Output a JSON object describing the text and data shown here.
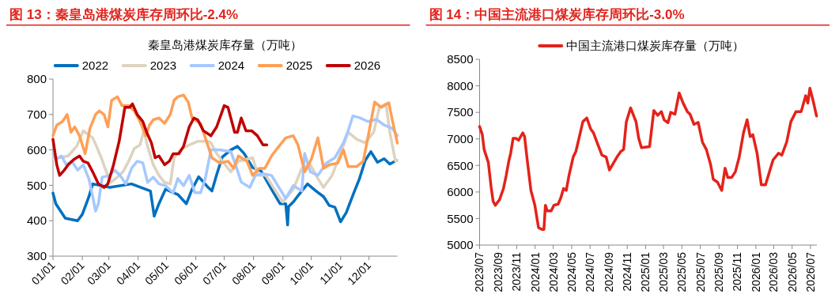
{
  "chart_data": [
    {
      "type": "line",
      "title": "图 13：秦皇岛港煤炭库存周环比-2.4%",
      "subtitle": "秦皇岛港煤炭库存量（万吨）",
      "legend": "top",
      "xlim": [
        "--01-01",
        "--12-31"
      ],
      "ylim": [
        300,
        800
      ],
      "yticks": [
        300,
        400,
        500,
        600,
        700,
        800
      ],
      "xticks": [
        {
          "value": "--01-01",
          "label": "01/01"
        },
        {
          "value": "--02-01",
          "label": "02/01"
        },
        {
          "value": "--03-01",
          "label": "03/01"
        },
        {
          "value": "--04-01",
          "label": "04/01"
        },
        {
          "value": "--05-01",
          "label": "05/01"
        },
        {
          "value": "--06-01",
          "label": "06/01"
        },
        {
          "value": "--07-01",
          "label": "07/01"
        },
        {
          "value": "--08-01",
          "label": "08/01"
        },
        {
          "value": "--09-01",
          "label": "09/01"
        },
        {
          "value": "--10-01",
          "label": "10/01"
        },
        {
          "value": "--11-01",
          "label": "11/01"
        },
        {
          "value": "--12-01",
          "label": "12/01"
        }
      ],
      "series": [
        {
          "name": "2022",
          "color": "#0070c0",
          "x": [
            "--01-01",
            "--01-04",
            "--01-14",
            "--01-27",
            "--02-01",
            "--02-08",
            "--02-12",
            "--03-02",
            "--03-25",
            "--04-14",
            "--04-18",
            "--04-23",
            "--04-30",
            "--05-13",
            "--05-22",
            "--05-28",
            "--06-04",
            "--06-14",
            "--06-18",
            "--06-23",
            "--06-29",
            "--07-08",
            "--07-15",
            "--07-22",
            "--07-31",
            "--08-09",
            "--08-20",
            "--08-29",
            "--09-04",
            "--09-06",
            "--09-07",
            "--09-12",
            "--09-18",
            "--09-27",
            "--10-06",
            "--10-14",
            "--10-20",
            "--10-26",
            "--11-01",
            "--11-07",
            "--11-15",
            "--11-21",
            "--11-27",
            "--12-03",
            "--12-10",
            "--12-17",
            "--12-23",
            "--12-30"
          ],
          "values": [
            478,
            448,
            407,
            400,
            418,
            468,
            504,
            494,
            504,
            484,
            413,
            448,
            489,
            474,
            448,
            489,
            524,
            494,
            484,
            530,
            580,
            600,
            610,
            590,
            550,
            540,
            489,
            448,
            448,
            388,
            440,
            453,
            474,
            504,
            484,
            468,
            443,
            438,
            397,
            423,
            479,
            519,
            570,
            595,
            565,
            575,
            560,
            570
          ]
        },
        {
          "name": "2023",
          "color": "#ddd3bf",
          "x": [
            "--01-01",
            "--01-08",
            "--01-17",
            "--01-26",
            "--02-02",
            "--02-12",
            "--02-16",
            "--02-21",
            "--02-25",
            "--03-03",
            "--03-10",
            "--03-16",
            "--03-22",
            "--03-28",
            "--04-03",
            "--04-07",
            "--04-11",
            "--04-17",
            "--04-23",
            "--04-29",
            "--05-05",
            "--05-09",
            "--05-16",
            "--05-25",
            "--06-03",
            "--06-14",
            "--06-17",
            "--06-23",
            "--06-29",
            "--07-08",
            "--07-16",
            "--07-31",
            "--08-06",
            "--08-14",
            "--08-23",
            "--09-01",
            "--09-12",
            "--09-21",
            "--09-30",
            "--10-08",
            "--10-14",
            "--10-23",
            "--11-01",
            "--11-09",
            "--11-18",
            "--11-27",
            "--12-06",
            "--12-12",
            "--12-19",
            "--12-23",
            "--12-29",
            "--12-31"
          ],
          "values": [
            575,
            578,
            583,
            610,
            654,
            634,
            610,
            578,
            548,
            508,
            523,
            538,
            568,
            604,
            614,
            654,
            610,
            558,
            528,
            508,
            504,
            578,
            600,
            614,
            624,
            624,
            620,
            590,
            568,
            538,
            568,
            578,
            528,
            528,
            489,
            453,
            489,
            548,
            558,
            519,
            494,
            528,
            590,
            650,
            630,
            620,
            650,
            720,
            730,
            650,
            568,
            570
          ]
        },
        {
          "name": "2024",
          "color": "#a6c8ff",
          "x": [
            "--01-01",
            "--01-05",
            "--01-10",
            "--01-15",
            "--01-21",
            "--01-27",
            "--02-02",
            "--02-08",
            "--02-12",
            "--02-15",
            "--02-18",
            "--02-22",
            "--03-02",
            "--03-07",
            "--03-13",
            "--03-19",
            "--03-25",
            "--03-31",
            "--04-06",
            "--04-11",
            "--04-17",
            "--04-23",
            "--04-30",
            "--05-08",
            "--05-13",
            "--05-19",
            "--05-25",
            "--05-31",
            "--06-06",
            "--06-11",
            "--06-17",
            "--06-26",
            "--07-08",
            "--07-13",
            "--07-19",
            "--07-28",
            "--08-03",
            "--08-11",
            "--08-20",
            "--08-29",
            "--09-04",
            "--09-12",
            "--09-21",
            "--09-24",
            "--09-30",
            "--10-08",
            "--10-17",
            "--10-26",
            "--11-04",
            "--11-09",
            "--11-14",
            "--11-21",
            "--11-30",
            "--12-09",
            "--12-17",
            "--12-26",
            "--12-31"
          ],
          "values": [
            589,
            575,
            583,
            558,
            568,
            543,
            558,
            518,
            468,
            427,
            448,
            523,
            528,
            543,
            528,
            504,
            548,
            568,
            563,
            508,
            523,
            504,
            499,
            479,
            519,
            499,
            528,
            479,
            479,
            519,
            600,
            600,
            595,
            558,
            509,
            494,
            528,
            533,
            528,
            489,
            463,
            499,
            484,
            590,
            538,
            528,
            563,
            578,
            620,
            654,
            696,
            691,
            680,
            686,
            670,
            660,
            640
          ]
        },
        {
          "name": "2025",
          "color": "#ff9f56",
          "x": [
            "--01-01",
            "--01-05",
            "--01-11",
            "--01-16",
            "--01-20",
            "--01-24",
            "--01-29",
            "--02-04",
            "--02-09",
            "--02-15",
            "--02-19",
            "--02-24",
            "--02-28",
            "--03-04",
            "--03-10",
            "--03-15",
            "--03-22",
            "--03-28",
            "--04-03",
            "--04-09",
            "--04-13",
            "--04-17",
            "--04-23",
            "--04-29",
            "--05-05",
            "--05-09",
            "--05-13",
            "--05-19",
            "--05-24",
            "--05-28",
            "--06-06",
            "--06-11",
            "--06-18",
            "--06-26",
            "--07-05",
            "--07-11",
            "--07-16",
            "--07-25",
            "--07-31",
            "--08-07",
            "--08-13",
            "--08-20",
            "--08-26",
            "--09-04",
            "--09-12",
            "--09-17",
            "--09-24",
            "--10-01",
            "--10-08",
            "--10-14",
            "--10-20",
            "--10-29",
            "--11-04",
            "--11-09",
            "--11-18",
            "--11-25",
            "--12-01",
            "--12-07",
            "--12-14",
            "--12-22",
            "--12-26",
            "--12-31"
          ],
          "values": [
            640,
            670,
            680,
            700,
            650,
            665,
            640,
            589,
            660,
            700,
            710,
            700,
            665,
            740,
            750,
            725,
            725,
            710,
            680,
            640,
            670,
            685,
            690,
            675,
            700,
            740,
            750,
            755,
            735,
            690,
            675,
            634,
            578,
            563,
            568,
            548,
            583,
            568,
            528,
            548,
            548,
            583,
            604,
            634,
            640,
            614,
            538,
            573,
            634,
            548,
            558,
            563,
            600,
            553,
            553,
            568,
            650,
            735,
            720,
            733,
            680,
            619
          ]
        },
        {
          "name": "2026",
          "color": "#c00000",
          "x": [
            "--01-01",
            "--01-05",
            "--01-08",
            "--01-13",
            "--01-17",
            "--01-23",
            "--01-29",
            "--02-02",
            "--02-07",
            "--02-12",
            "--02-18",
            "--02-24",
            "--02-28",
            "--03-06",
            "--03-12",
            "--03-18",
            "--03-23",
            "--03-26",
            "--03-31",
            "--04-06",
            "--04-10",
            "--04-15",
            "--04-19",
            "--04-23",
            "--04-29",
            "--05-04",
            "--05-08",
            "--05-14",
            "--05-19",
            "--05-25",
            "--05-30",
            "--06-03",
            "--06-09",
            "--06-17",
            "--06-23",
            "--07-01",
            "--07-05",
            "--07-12",
            "--07-15",
            "--07-19",
            "--07-24",
            "--07-30",
            "--08-05",
            "--08-11",
            "--08-15"
          ],
          "values": [
            630,
            558,
            528,
            543,
            558,
            573,
            583,
            568,
            563,
            538,
            504,
            494,
            504,
            558,
            625,
            720,
            720,
            730,
            700,
            680,
            650,
            620,
            578,
            583,
            558,
            568,
            589,
            589,
            610,
            665,
            690,
            685,
            654,
            640,
            665,
            725,
            720,
            650,
            650,
            690,
            654,
            654,
            640,
            614,
            614
          ]
        }
      ]
    },
    {
      "type": "line",
      "title": "图 14：中国主流港口煤炭库存周环比-3.0%",
      "legend": "top",
      "xlim": [
        "2023-07-01",
        "2026-07-22"
      ],
      "ylim": [
        5000,
        8500
      ],
      "yticks": [
        5000,
        5500,
        6000,
        6500,
        7000,
        7500,
        8000,
        8500
      ],
      "xticks": [
        {
          "value": "2023-07-01",
          "label": "2023/07"
        },
        {
          "value": "2023-09-01",
          "label": "2023/09"
        },
        {
          "value": "2023-11-01",
          "label": "2023/11"
        },
        {
          "value": "2024-01-01",
          "label": "2024/01"
        },
        {
          "value": "2024-03-01",
          "label": "2024/03"
        },
        {
          "value": "2024-05-01",
          "label": "2024/05"
        },
        {
          "value": "2024-07-01",
          "label": "2024/07"
        },
        {
          "value": "2024-09-01",
          "label": "2024/09"
        },
        {
          "value": "2024-11-01",
          "label": "2024/11"
        },
        {
          "value": "2025-01-01",
          "label": "2025/01"
        },
        {
          "value": "2025-03-01",
          "label": "2025/03"
        },
        {
          "value": "2025-05-01",
          "label": "2025/05"
        },
        {
          "value": "2025-07-01",
          "label": "2025/07"
        },
        {
          "value": "2025-09-01",
          "label": "2025/09"
        },
        {
          "value": "2025-11-01",
          "label": "2025/11"
        },
        {
          "value": "2026-01-01",
          "label": "2026/01"
        },
        {
          "value": "2026-03-01",
          "label": "2026/03"
        },
        {
          "value": "2026-05-01",
          "label": "2026/05"
        },
        {
          "value": "2026-07-01",
          "label": "2026/07"
        }
      ],
      "series": [
        {
          "name": "中国主流港口煤炭库存量（万吨）",
          "color": "#e3231b",
          "x": [
            "2023-07-01",
            "2023-07-10",
            "2023-07-16",
            "2023-07-30",
            "2023-08-08",
            "2023-08-15",
            "2023-08-22",
            "2023-09-05",
            "2023-09-18",
            "2023-09-27",
            "2023-10-06",
            "2023-10-12",
            "2023-10-20",
            "2023-10-29",
            "2023-11-07",
            "2023-11-21",
            "2023-11-27",
            "2023-12-06",
            "2023-12-18",
            "2023-12-31",
            "2024-01-12",
            "2024-01-24",
            "2024-01-30",
            "2024-02-04",
            "2024-02-10",
            "2024-02-23",
            "2024-03-03",
            "2024-03-17",
            "2024-03-26",
            "2024-04-04",
            "2024-04-13",
            "2024-04-22",
            "2024-05-06",
            "2024-05-15",
            "2024-05-28",
            "2024-06-07",
            "2024-06-20",
            "2024-07-03",
            "2024-07-12",
            "2024-07-26",
            "2024-08-09",
            "2024-08-23",
            "2024-09-03",
            "2024-09-14",
            "2024-09-28",
            "2024-10-11",
            "2024-10-20",
            "2024-10-29",
            "2024-11-12",
            "2024-11-30",
            "2024-12-09",
            "2024-12-18",
            "2025-01-14",
            "2025-01-28",
            "2025-02-10",
            "2025-02-22",
            "2025-03-03",
            "2025-03-16",
            "2025-03-25",
            "2025-04-08",
            "2025-04-22",
            "2025-05-05",
            "2025-05-19",
            "2025-05-28",
            "2025-06-10",
            "2025-06-24",
            "2025-07-08",
            "2025-07-21",
            "2025-08-04",
            "2025-08-13",
            "2025-08-27",
            "2025-09-10",
            "2025-09-21",
            "2025-09-30",
            "2025-10-13",
            "2025-10-25",
            "2025-11-07",
            "2025-11-21",
            "2025-12-03",
            "2025-12-13",
            "2025-12-22",
            "2026-01-05",
            "2026-01-19",
            "2026-02-02",
            "2026-02-15",
            "2026-02-27",
            "2026-03-17",
            "2026-03-28",
            "2026-04-13",
            "2026-04-27",
            "2026-05-14",
            "2026-05-31",
            "2026-06-15",
            "2026-06-22",
            "2026-06-29",
            "2026-07-10",
            "2026-07-21"
          ],
          "values": [
            7233,
            7080,
            6800,
            6555,
            6100,
            5820,
            5750,
            5855,
            6065,
            6310,
            6590,
            6730,
            7010,
            7010,
            6975,
            7115,
            7045,
            6590,
            6030,
            5750,
            5330,
            5295,
            5295,
            5750,
            5645,
            5645,
            5750,
            5770,
            5890,
            6065,
            6030,
            6310,
            6660,
            6765,
            7080,
            7325,
            7395,
            7185,
            7115,
            6905,
            6695,
            6660,
            6415,
            6520,
            6660,
            6765,
            6800,
            7325,
            7585,
            7325,
            7010,
            6835,
            6855,
            7535,
            7445,
            7515,
            7360,
            7305,
            7500,
            7465,
            7865,
            7675,
            7515,
            7465,
            7275,
            7310,
            6940,
            6800,
            6520,
            6240,
            6185,
            6030,
            6450,
            6275,
            6275,
            6380,
            6660,
            7115,
            7360,
            7045,
            7080,
            6730,
            6135,
            6135,
            6380,
            6605,
            6730,
            6695,
            6940,
            7325,
            7515,
            7515,
            7815,
            7675,
            7955,
            7710,
            7430
          ]
        }
      ]
    }
  ]
}
